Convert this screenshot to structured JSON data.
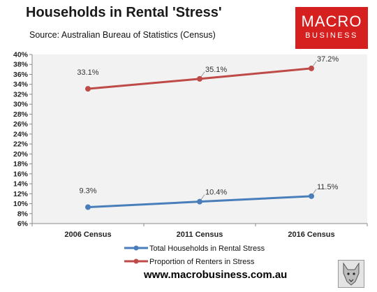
{
  "header": {
    "title": "Households in Rental 'Stress'",
    "source": "Source: Australian Bureau of Statistics (Census)"
  },
  "logo": {
    "line1": "MACRO",
    "line2": "BUSINESS",
    "color": "#d6201f"
  },
  "footer": {
    "url": "www.macrobusiness.com.au",
    "mascot_icon": "wolf-icon"
  },
  "chart_data": {
    "type": "line",
    "categories": [
      "2006 Census",
      "2011 Census",
      "2016 Census"
    ],
    "y_ticks": [
      "40%",
      "38%",
      "36%",
      "34%",
      "32%",
      "30%",
      "28%",
      "26%",
      "24%",
      "22%",
      "20%",
      "18%",
      "16%",
      "14%",
      "12%",
      "10%",
      "8%",
      "6%"
    ],
    "ylim": [
      6,
      40
    ],
    "y_unit": "%",
    "grid": false,
    "legend_position": "bottom",
    "series": [
      {
        "name": "Total Households in Rental Stress",
        "color": "#4a7ebb",
        "values": [
          9.3,
          10.4,
          11.5
        ],
        "labels": [
          "9.3%",
          "10.4%",
          "11.5%"
        ]
      },
      {
        "name": "Proportion of Renters in Stress",
        "color": "#be4b48",
        "values": [
          33.1,
          35.1,
          37.2
        ],
        "labels": [
          "33.1%",
          "35.1%",
          "37.2%"
        ]
      }
    ]
  }
}
